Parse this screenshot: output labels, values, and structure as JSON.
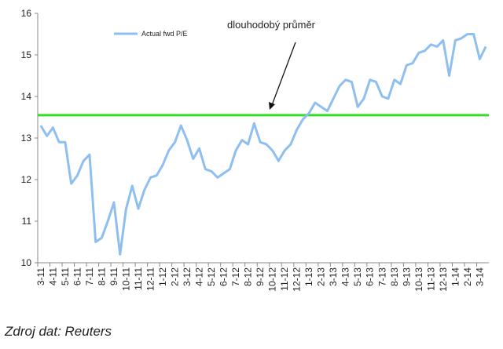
{
  "chart_data": {
    "type": "line",
    "categories": [
      "3-11",
      null,
      "4-11",
      null,
      "5-11",
      null,
      "6-11",
      null,
      "7-11",
      null,
      "8-11",
      null,
      "9-11",
      null,
      "10-11",
      null,
      "11-11",
      null,
      "12-11",
      null,
      "1-12",
      null,
      "2-12",
      null,
      "3-12",
      null,
      "4-12",
      null,
      "5-12",
      null,
      "6-12",
      null,
      "7-12",
      null,
      "8-12",
      null,
      "9-12",
      null,
      "10-12",
      null,
      "11-12",
      null,
      "12-12",
      null,
      "1-13",
      null,
      "2-13",
      null,
      "3-13",
      null,
      "4-13",
      null,
      "5-13",
      null,
      "6-13",
      null,
      "7-13",
      null,
      "8-13",
      null,
      "9-13",
      null,
      "10-13",
      null,
      "11-13",
      null,
      "12-13",
      null,
      "1-14",
      null,
      "2-14",
      null,
      "3-14",
      null
    ],
    "series": [
      {
        "name": "Actual fwd P/E",
        "color": "#8fbff0",
        "values": [
          13.3,
          13.05,
          13.25,
          12.9,
          12.9,
          11.9,
          12.1,
          12.45,
          12.6,
          10.5,
          10.6,
          11.0,
          11.45,
          10.2,
          11.3,
          11.85,
          11.3,
          11.75,
          12.05,
          12.1,
          12.35,
          12.7,
          12.9,
          13.3,
          12.95,
          12.5,
          12.75,
          12.25,
          12.2,
          12.05,
          12.15,
          12.25,
          12.7,
          12.95,
          12.85,
          13.35,
          12.9,
          12.85,
          12.7,
          12.45,
          12.7,
          12.85,
          13.2,
          13.45,
          13.6,
          13.85,
          13.75,
          13.65,
          13.95,
          14.25,
          14.4,
          14.35,
          13.75,
          13.95,
          14.4,
          14.35,
          14.0,
          13.95,
          14.4,
          14.3,
          14.75,
          14.8,
          15.05,
          15.1,
          15.25,
          15.2,
          15.35,
          14.5,
          15.35,
          15.4,
          15.5,
          15.5,
          14.9,
          15.2
        ]
      }
    ],
    "reference_line": {
      "value": 13.55,
      "color": "#33dd22",
      "label": "dlouhodobý průměr"
    },
    "ylim": [
      10,
      16
    ],
    "yticks": [
      10,
      11,
      12,
      13,
      14,
      15,
      16
    ],
    "grid": false,
    "legend": "top-left",
    "source": "Zdroj dat: Reuters"
  }
}
